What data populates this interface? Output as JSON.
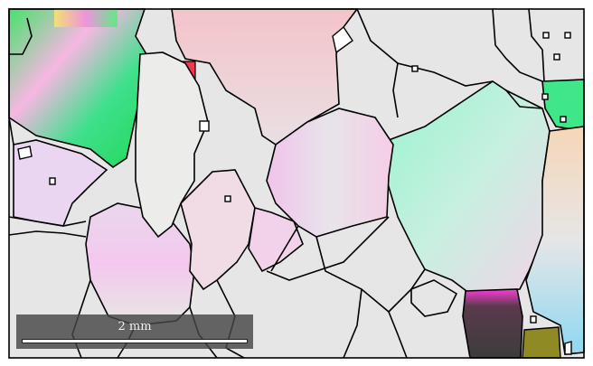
{
  "scale_bar": {
    "label": "2 mm"
  },
  "colors": {
    "frame": "#000000",
    "grain_boundary": "#000000",
    "matrix": "#e6e6e6",
    "scale_box": "#464646"
  }
}
